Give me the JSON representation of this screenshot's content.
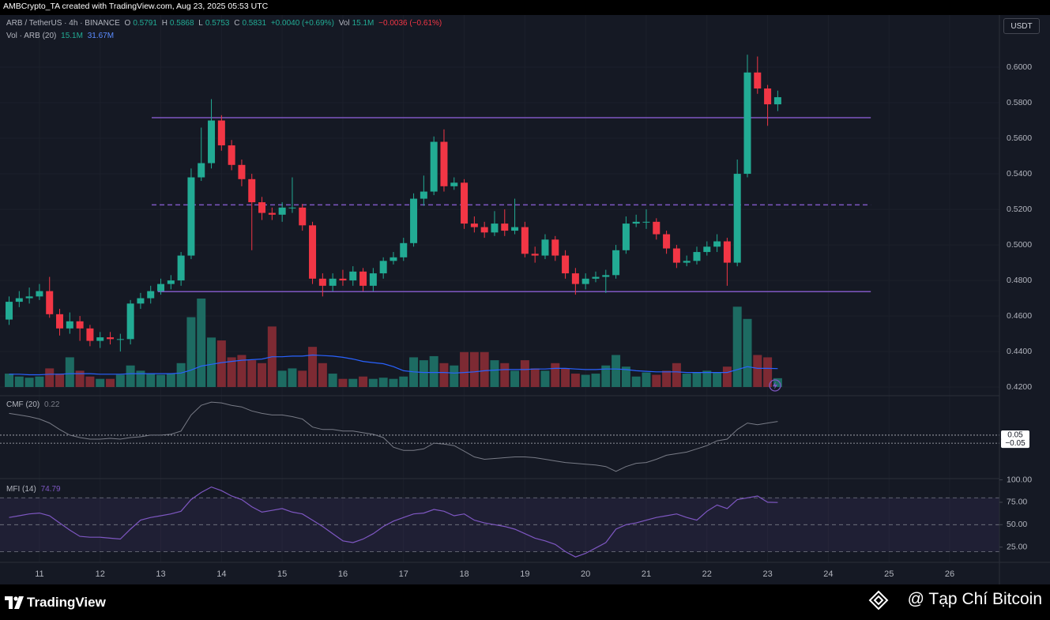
{
  "chart_data": {
    "type": "candlestick",
    "header": "AMBCrypto_TA created with TradingView.com, Aug 23, 2025 05:53 UTC",
    "symbol": "ARB / TetherUS · 4h · BINANCE",
    "ohlc_letters": [
      "O",
      "H",
      "L",
      "C"
    ],
    "change": "+0.0040 (+0.69%)",
    "vol_word": "Vol",
    "vol_change": "−0.0036 (−0.61%)",
    "currency": "USDT",
    "up_color": "#22ab94",
    "down_color": "#f23645",
    "grid": true,
    "x": [
      10.5,
      10.6667,
      10.8333,
      11,
      11.1667,
      11.3333,
      11.5,
      11.6667,
      11.8333,
      12,
      12.1667,
      12.3333,
      12.5,
      12.6667,
      12.8333,
      13,
      13.1667,
      13.3333,
      13.5,
      13.6667,
      13.8333,
      14,
      14.1667,
      14.3333,
      14.5,
      14.6667,
      14.8333,
      15,
      15.1667,
      15.3333,
      15.5,
      15.6667,
      15.8333,
      16,
      16.1667,
      16.3333,
      16.5,
      16.6667,
      16.8333,
      17,
      17.1667,
      17.3333,
      17.5,
      17.6667,
      17.8333,
      18,
      18.1667,
      18.3333,
      18.5,
      18.6667,
      18.8333,
      19,
      19.1667,
      19.3333,
      19.5,
      19.6667,
      19.8333,
      20,
      20.1667,
      20.3333,
      20.5,
      20.6667,
      20.8333,
      21,
      21.1667,
      21.3333,
      21.5,
      21.6667,
      21.8333,
      22,
      22.1667,
      22.3333,
      22.5,
      22.6667,
      22.8333,
      23,
      23.1667
    ],
    "xlim": [
      10.35,
      26.82
    ],
    "xticks": [
      11,
      12,
      13,
      14,
      15,
      16,
      17,
      18,
      19,
      20,
      21,
      22,
      23,
      24,
      25,
      26
    ],
    "ylim": [
      0.4156,
      0.6289
    ],
    "yticks": [
      {
        "value": 0.6,
        "label": "0.6000"
      },
      {
        "value": 0.58,
        "label": "0.5800"
      },
      {
        "value": 0.56,
        "label": "0.5600"
      },
      {
        "value": 0.54,
        "label": "0.5400"
      },
      {
        "value": 0.52,
        "label": "0.5200"
      },
      {
        "value": 0.5,
        "label": "0.5000"
      },
      {
        "value": 0.48,
        "label": "0.4800"
      },
      {
        "value": 0.46,
        "label": "0.4600"
      },
      {
        "value": 0.44,
        "label": "0.4400"
      },
      {
        "value": 0.42,
        "label": "0.4200"
      }
    ],
    "open": [
      0.458,
      0.468,
      0.47,
      0.471,
      0.474,
      0.461,
      0.453,
      0.457,
      0.453,
      0.446,
      0.448,
      0.447,
      0.447,
      0.467,
      0.47,
      0.474,
      0.478,
      0.48,
      0.494,
      0.538,
      0.546,
      0.57,
      0.556,
      0.545,
      0.537,
      0.524,
      0.518,
      0.517,
      0.521,
      0.521,
      0.511,
      0.481,
      0.477,
      0.481,
      0.48,
      0.485,
      0.477,
      0.484,
      0.491,
      0.493,
      0.501,
      0.526,
      0.53,
      0.558,
      0.533,
      0.535,
      0.512,
      0.51,
      0.507,
      0.512,
      0.508,
      0.51,
      0.495,
      0.494,
      0.503,
      0.494,
      0.484,
      0.478,
      0.481,
      0.482,
      0.483,
      0.497,
      0.512,
      0.513,
      0.513,
      0.506,
      0.498,
      0.49,
      0.491,
      0.496,
      0.499,
      0.502,
      0.49,
      0.54,
      0.597,
      0.588,
      0.5791
    ],
    "high": [
      0.471,
      0.474,
      0.476,
      0.478,
      0.482,
      0.464,
      0.462,
      0.46,
      0.455,
      0.451,
      0.451,
      0.45,
      0.469,
      0.473,
      0.477,
      0.481,
      0.483,
      0.496,
      0.543,
      0.566,
      0.582,
      0.573,
      0.559,
      0.548,
      0.54,
      0.527,
      0.521,
      0.524,
      0.538,
      0.523,
      0.513,
      0.484,
      0.484,
      0.486,
      0.488,
      0.487,
      0.487,
      0.493,
      0.496,
      0.504,
      0.529,
      0.539,
      0.561,
      0.565,
      0.538,
      0.537,
      0.516,
      0.513,
      0.519,
      0.52,
      0.526,
      0.513,
      0.499,
      0.506,
      0.505,
      0.497,
      0.487,
      0.484,
      0.485,
      0.486,
      0.5,
      0.516,
      0.517,
      0.52,
      0.515,
      0.508,
      0.5,
      0.494,
      0.499,
      0.502,
      0.506,
      0.504,
      0.548,
      0.607,
      0.606,
      0.59,
      0.5868
    ],
    "low": [
      0.455,
      0.465,
      0.467,
      0.469,
      0.459,
      0.449,
      0.45,
      0.446,
      0.443,
      0.442,
      0.444,
      0.44,
      0.444,
      0.464,
      0.467,
      0.472,
      0.475,
      0.477,
      0.492,
      0.536,
      0.543,
      0.553,
      0.542,
      0.533,
      0.497,
      0.514,
      0.514,
      0.513,
      0.518,
      0.508,
      0.478,
      0.471,
      0.474,
      0.477,
      0.477,
      0.474,
      0.474,
      0.481,
      0.489,
      0.491,
      0.499,
      0.522,
      0.528,
      0.53,
      0.531,
      0.509,
      0.507,
      0.504,
      0.505,
      0.505,
      0.506,
      0.493,
      0.49,
      0.492,
      0.491,
      0.481,
      0.472,
      0.475,
      0.479,
      0.473,
      0.481,
      0.495,
      0.51,
      0.509,
      0.503,
      0.495,
      0.487,
      0.488,
      0.489,
      0.494,
      0.496,
      0.477,
      0.488,
      0.538,
      0.585,
      0.567,
      0.5753
    ],
    "close": [
      0.468,
      0.47,
      0.471,
      0.474,
      0.461,
      0.453,
      0.457,
      0.453,
      0.446,
      0.448,
      0.447,
      0.447,
      0.467,
      0.47,
      0.474,
      0.478,
      0.48,
      0.494,
      0.538,
      0.546,
      0.57,
      0.556,
      0.545,
      0.537,
      0.524,
      0.518,
      0.517,
      0.521,
      0.521,
      0.511,
      0.481,
      0.477,
      0.481,
      0.48,
      0.485,
      0.477,
      0.484,
      0.491,
      0.493,
      0.501,
      0.526,
      0.53,
      0.558,
      0.533,
      0.535,
      0.512,
      0.51,
      0.507,
      0.512,
      0.508,
      0.51,
      0.495,
      0.494,
      0.503,
      0.494,
      0.484,
      0.478,
      0.481,
      0.482,
      0.483,
      0.497,
      0.512,
      0.513,
      0.513,
      0.506,
      0.498,
      0.49,
      0.491,
      0.496,
      0.499,
      0.502,
      0.49,
      0.54,
      0.597,
      0.588,
      0.5791,
      0.5831
    ],
    "volume": {
      "title": "Vol · ARB (20)",
      "labels": [
        "15.1M",
        "31.67M"
      ],
      "up_color": "#1d6b62",
      "down_color": "#7d2a33",
      "ma_color": "#2962ff",
      "values": [
        23,
        18,
        16,
        18,
        32,
        23,
        51,
        28,
        18,
        14,
        14,
        21,
        37,
        28,
        23,
        21,
        23,
        41,
        120,
        152,
        85,
        80,
        51,
        55,
        46,
        41,
        104,
        28,
        32,
        28,
        69,
        41,
        23,
        14,
        14,
        18,
        14,
        16,
        14,
        18,
        51,
        46,
        53,
        41,
        37,
        60,
        60,
        60,
        46,
        41,
        28,
        46,
        32,
        28,
        41,
        32,
        23,
        21,
        23,
        37,
        55,
        35,
        18,
        25,
        21,
        28,
        41,
        23,
        25,
        28,
        25,
        35,
        138,
        117,
        55,
        51,
        15.1
      ],
      "ma": [
        22,
        22,
        21,
        21,
        22,
        22,
        23,
        23,
        23,
        22,
        22,
        22,
        23,
        23,
        23,
        23,
        23,
        24,
        29,
        36,
        39,
        42,
        44,
        46,
        47,
        48,
        52,
        52,
        53,
        53,
        55,
        54,
        53,
        51,
        48,
        44,
        42,
        40,
        35,
        28,
        26,
        25,
        25,
        25,
        24,
        25,
        26,
        28,
        29,
        30,
        30,
        30,
        31,
        31,
        32,
        32,
        31,
        30,
        30,
        31,
        31,
        30,
        28,
        27,
        26,
        26,
        26,
        25,
        25,
        25,
        25,
        25,
        30,
        35,
        32,
        32,
        31.67
      ]
    },
    "levels": [
      {
        "value": 0.5716,
        "style": "solid",
        "from": 12.85,
        "to": 24.7,
        "color": "#7e57c2"
      },
      {
        "value": 0.5225,
        "style": "dashed",
        "from": 12.85,
        "to": 24.7,
        "color": "#7e57c2"
      },
      {
        "value": 0.4737,
        "style": "solid",
        "from": 12.95,
        "to": 24.7,
        "color": "#7e57c2"
      }
    ],
    "cmf": {
      "title": "CMF (20)",
      "color": "#787b86",
      "ylim": [
        -0.48,
        0.52
      ],
      "yticks": [
        0.05,
        {
          "value": -0.05,
          "label": "−0.05"
        }
      ],
      "values": [
        0.32,
        0.3,
        0.28,
        0.25,
        0.2,
        0.12,
        0.05,
        0.02,
        0.0,
        0.0,
        0.01,
        0.0,
        0.02,
        0.03,
        0.05,
        0.05,
        0.06,
        0.1,
        0.3,
        0.42,
        0.46,
        0.45,
        0.42,
        0.4,
        0.35,
        0.32,
        0.3,
        0.3,
        0.28,
        0.25,
        0.15,
        0.12,
        0.12,
        0.1,
        0.1,
        0.08,
        0.06,
        0.02,
        -0.1,
        -0.14,
        -0.14,
        -0.12,
        -0.05,
        -0.06,
        -0.08,
        -0.15,
        -0.22,
        -0.25,
        -0.24,
        -0.23,
        -0.22,
        -0.22,
        -0.23,
        -0.25,
        -0.27,
        -0.29,
        -0.3,
        -0.31,
        -0.32,
        -0.34,
        -0.4,
        -0.34,
        -0.3,
        -0.29,
        -0.25,
        -0.2,
        -0.18,
        -0.16,
        -0.12,
        -0.08,
        -0.02,
        0.0,
        0.12,
        0.2,
        0.18,
        0.2,
        0.22
      ]
    },
    "mfi": {
      "title": "MFI (14)",
      "color": "#7e57c2",
      "ylim": [
        8,
        100.5
      ],
      "yticks": [
        {
          "value": 100,
          "label": "100.00"
        },
        {
          "value": 75,
          "label": "75.00"
        },
        {
          "value": 50,
          "label": "50.00"
        },
        {
          "value": 25,
          "label": "25.00"
        }
      ],
      "bands": [
        80,
        50,
        20
      ],
      "values": [
        58,
        60,
        62,
        63,
        60,
        52,
        44,
        37,
        36,
        36,
        35,
        34,
        45,
        55,
        58,
        60,
        62,
        65,
        78,
        86,
        92,
        88,
        82,
        78,
        70,
        64,
        66,
        68,
        64,
        62,
        55,
        48,
        40,
        32,
        30,
        34,
        40,
        48,
        54,
        58,
        62,
        63,
        67,
        65,
        60,
        62,
        55,
        52,
        50,
        48,
        45,
        40,
        35,
        32,
        28,
        20,
        14,
        18,
        24,
        30,
        45,
        50,
        52,
        55,
        58,
        60,
        62,
        58,
        55,
        65,
        72,
        68,
        78,
        80,
        82,
        75,
        74.79
      ]
    },
    "footer": {
      "brand": "TradingView",
      "credit": "@ Tạp Chí Bitcoin"
    }
  }
}
